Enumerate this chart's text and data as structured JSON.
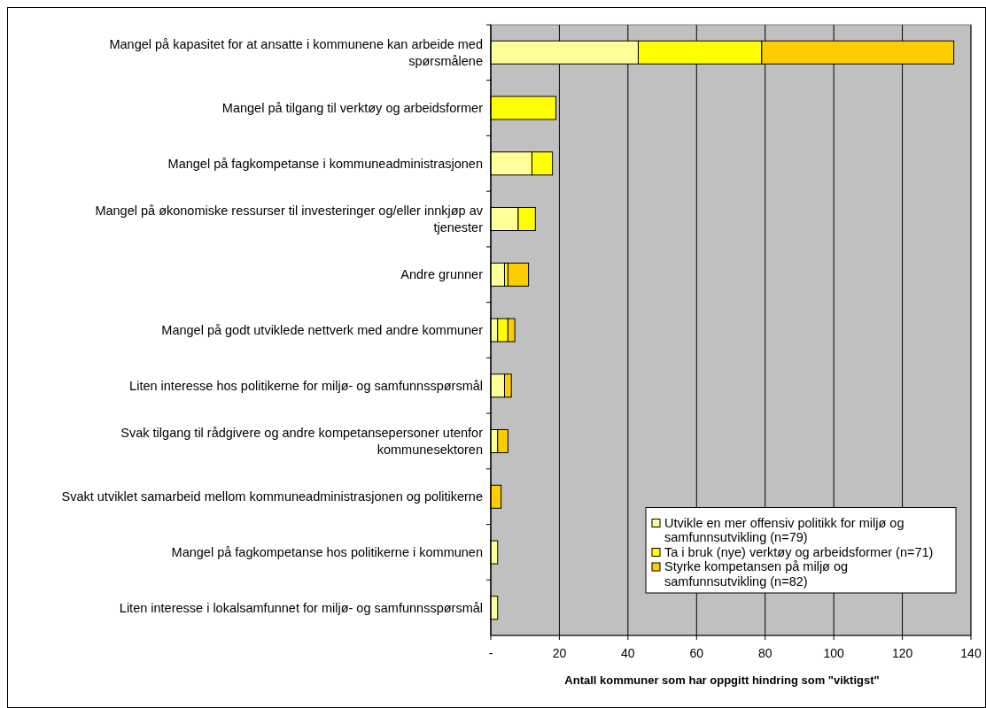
{
  "chart_data": {
    "type": "bar",
    "orientation": "horizontal",
    "stacked": true,
    "categories": [
      "Mangel på kapasitet for at ansatte i kommunene kan arbeide med spørsmålene",
      "Mangel på tilgang til verktøy og arbeidsformer",
      "Mangel på fagkompetanse i kommuneadministrasjonen",
      "Mangel på økonomiske ressurser til investeringer og/eller innkjøp av tjenester",
      "Andre grunner",
      "Mangel på godt utviklede nettverk med andre kommuner",
      "Liten interesse hos politikerne for miljø- og samfunnsspørsmål",
      "Svak tilgang til rådgivere og andre kompetansepersoner utenfor kommunesektoren",
      "Svakt utviklet samarbeid mellom kommuneadministrasjonen og politikerne",
      "Mangel på fagkompetanse hos politikerne i kommunen",
      "Liten interesse i lokalsamfunnet for miljø- og samfunnsspørsmål"
    ],
    "series": [
      {
        "name": "Utvikle en mer offensiv politikk for miljø og samfunnsutvikling (n=79)",
        "color": "#ffff99",
        "values": [
          43,
          0,
          12,
          8,
          4,
          2,
          4,
          2,
          0,
          2,
          2
        ]
      },
      {
        "name": "Ta i bruk (nye) verktøy og arbeidsformer (n=71)",
        "color": "#ffff00",
        "values": [
          36,
          19,
          6,
          5,
          1,
          3,
          0,
          0,
          0,
          0,
          0
        ]
      },
      {
        "name": "Styrke kompetansen på miljø og samfunnsutvikling (n=82)",
        "color": "#ffcc00",
        "values": [
          56,
          0,
          0,
          0,
          6,
          2,
          2,
          3,
          3,
          0,
          0
        ]
      }
    ],
    "xlabel": "Antall kommuner som har oppgitt hindring som \"viktigst\"",
    "xlim": [
      0,
      140
    ],
    "xticks": [
      {
        "value": 0,
        "label": "-"
      },
      20,
      40,
      60,
      80,
      100,
      120,
      140
    ],
    "grid": "x",
    "legend": "bottom right"
  }
}
